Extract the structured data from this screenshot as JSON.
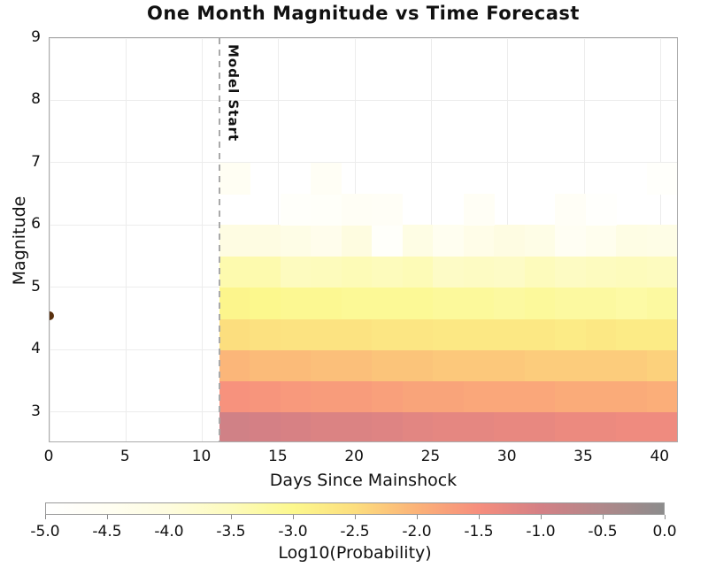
{
  "title": "One Month Magnitude vs Time Forecast",
  "chart_data": {
    "type": "heatmap",
    "title": "One Month Magnitude vs Time Forecast",
    "xlabel": "Days Since Mainshock",
    "ylabel": "Magnitude",
    "xlim": [
      0,
      41.2
    ],
    "ylim": [
      2.5,
      9
    ],
    "x_ticks": [
      0,
      5,
      10,
      15,
      20,
      25,
      30,
      35,
      40
    ],
    "y_ticks": [
      3,
      4,
      5,
      6,
      7,
      8,
      9
    ],
    "grid": true,
    "grid_color": "#ececec",
    "spine_color": "#ababab",
    "model_start": {
      "day": 11.1,
      "label": "Model Start",
      "line_color": "#a9a9a9"
    },
    "mainshock": {
      "day": 0,
      "magnitude": 4.55,
      "color": "#59300e"
    },
    "heatmap": {
      "day_start": 11.1,
      "day_bin_width": 2,
      "n_day_bins": 15,
      "mag_bin_lows": [
        2.5,
        3.0,
        3.5,
        4.0,
        4.5,
        5.0,
        5.5,
        6.0,
        6.5
      ],
      "mag_bin_height": 0.5,
      "values_log10_probability_rows_bottom_to_top": [
        [
          -0.95,
          -1.0,
          -1.05,
          -1.1,
          -1.1,
          -1.15,
          -1.2,
          -1.25,
          -1.25,
          -1.3,
          -1.3,
          -1.35,
          -1.35,
          -1.4,
          -1.4
        ],
        [
          -1.55,
          -1.6,
          -1.65,
          -1.7,
          -1.7,
          -1.75,
          -1.8,
          -1.8,
          -1.85,
          -1.85,
          -1.85,
          -1.9,
          -1.9,
          -1.9,
          -1.95
        ],
        [
          -2.05,
          -2.1,
          -2.1,
          -2.15,
          -2.15,
          -2.2,
          -2.2,
          -2.25,
          -2.25,
          -2.25,
          -2.3,
          -2.3,
          -2.3,
          -2.3,
          -2.35
        ],
        [
          -2.5,
          -2.55,
          -2.6,
          -2.6,
          -2.6,
          -2.65,
          -2.65,
          -2.7,
          -2.7,
          -2.7,
          -2.7,
          -2.75,
          -2.7,
          -2.75,
          -2.75
        ],
        [
          -2.95,
          -3.0,
          -3.05,
          -3.05,
          -3.1,
          -3.1,
          -3.1,
          -3.15,
          -3.15,
          -3.2,
          -3.15,
          -3.2,
          -3.2,
          -3.25,
          -3.2
        ],
        [
          -3.35,
          -3.35,
          -3.55,
          -3.5,
          -3.45,
          -3.5,
          -3.45,
          -3.65,
          -3.6,
          -3.65,
          -3.5,
          -3.6,
          -3.55,
          -3.5,
          -3.55
        ],
        [
          -4.1,
          -4.1,
          -4.2,
          -4.35,
          -4.05,
          -4.8,
          -4.15,
          -4.45,
          -4.25,
          -4.1,
          -4.2,
          -4.55,
          -4.4,
          -4.15,
          -4.2
        ],
        [
          null,
          null,
          -4.8,
          -4.75,
          -4.6,
          -4.65,
          null,
          null,
          -4.6,
          null,
          null,
          -4.65,
          -4.9,
          null,
          null
        ],
        [
          -4.55,
          null,
          null,
          -4.6,
          null,
          null,
          null,
          null,
          null,
          null,
          null,
          null,
          null,
          null,
          -4.85
        ]
      ]
    },
    "colorbar": {
      "label": "Log10(Probability)",
      "min": -5.0,
      "max": 0.0,
      "tick_labels": [
        "-5.0",
        "-4.5",
        "-4.0",
        "-3.5",
        "-3.0",
        "-2.5",
        "-2.0",
        "-1.5",
        "-1.0",
        "-0.5",
        "0.0"
      ],
      "colormap_stops": [
        {
          "value": -5.0,
          "color": "#ffffff"
        },
        {
          "value": -4.5,
          "color": "#fffef2"
        },
        {
          "value": -4.0,
          "color": "#fefcde"
        },
        {
          "value": -3.5,
          "color": "#fdfbbc"
        },
        {
          "value": -3.0,
          "color": "#fcf88d"
        },
        {
          "value": -2.5,
          "color": "#fcde7e"
        },
        {
          "value": -2.0,
          "color": "#fbb278"
        },
        {
          "value": -1.5,
          "color": "#f68e7d"
        },
        {
          "value": -1.0,
          "color": "#d48085"
        },
        {
          "value": -0.5,
          "color": "#b0888a"
        },
        {
          "value": 0.0,
          "color": "#8c8c8c"
        }
      ]
    }
  }
}
